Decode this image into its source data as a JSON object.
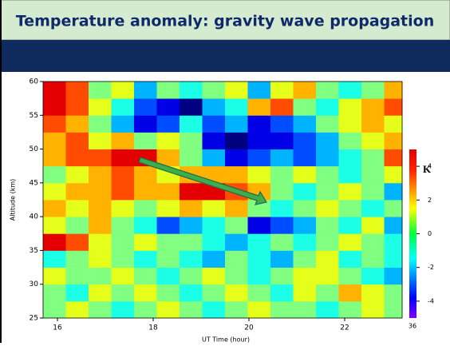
{
  "chart_data": {
    "type": "heatmap",
    "title": "Temperature anomaly: gravity wave propagation",
    "xlabel": "UT Time (hour)",
    "ylabel": "Altitude (km)",
    "xlim": [
      15.7,
      23.2
    ],
    "xticks": [
      16,
      18,
      20,
      22
    ],
    "ylim": [
      25,
      60
    ],
    "yticks": [
      25,
      30,
      35,
      40,
      45,
      50,
      55,
      60
    ],
    "xbins": [
      15.7,
      16.175,
      16.65,
      17.125,
      17.6,
      18.075,
      18.55,
      19.025,
      19.5,
      19.975,
      20.45,
      20.925,
      21.4,
      21.875,
      22.35,
      22.825,
      23.2
    ],
    "ybins": [
      25,
      27.5,
      30,
      32.5,
      35,
      37.5,
      40,
      42.5,
      45,
      47.5,
      50,
      52.5,
      55,
      57.5,
      60
    ],
    "colormap": "jet",
    "clim": [
      -5,
      5
    ],
    "cticks": [
      -4,
      -2,
      0,
      2,
      4
    ],
    "colorbar_label": "K",
    "colorbar_footnote": "36",
    "values": [
      [
        0,
        1,
        0,
        -1,
        0,
        1,
        0,
        -1,
        0,
        1,
        0,
        0,
        -1,
        0,
        1,
        0
      ],
      [
        0,
        -1,
        1,
        0,
        1,
        0,
        -1,
        0,
        1,
        0,
        -1,
        1,
        0,
        2,
        1,
        0
      ],
      [
        1,
        0,
        0,
        1,
        0,
        -1,
        0,
        1,
        0,
        -1,
        0,
        1,
        1,
        0,
        -1,
        -2
      ],
      [
        -1,
        0,
        1,
        0,
        -1,
        0,
        -1,
        -2,
        0,
        -1,
        -2,
        0,
        1,
        -1,
        0,
        -1
      ],
      [
        4,
        3,
        1,
        0,
        1,
        0,
        0,
        -1,
        -2,
        -1,
        0,
        -1,
        0,
        1,
        0,
        -1
      ],
      [
        1,
        0,
        2,
        0,
        -1,
        -3,
        -2,
        -1,
        0,
        -4,
        -3,
        -2,
        0,
        -1,
        1,
        -2
      ],
      [
        2,
        1,
        2,
        1,
        0,
        1,
        2,
        1,
        2,
        0,
        -1,
        0,
        1,
        0,
        -1,
        0
      ],
      [
        1,
        2,
        2,
        3,
        2,
        2,
        4,
        4,
        3,
        2,
        0,
        -1,
        0,
        1,
        0,
        -2
      ],
      [
        0,
        1,
        2,
        3,
        2,
        1,
        2,
        2,
        2,
        1,
        0,
        1,
        0,
        -1,
        0,
        1
      ],
      [
        2,
        3,
        3,
        4,
        4,
        2,
        0,
        -2,
        -4,
        -3,
        -2,
        -3,
        -2,
        -1,
        0,
        3
      ],
      [
        2,
        3,
        1,
        2,
        0,
        1,
        0,
        -4,
        -5,
        -4,
        -4,
        -3,
        -2,
        0,
        1,
        2
      ],
      [
        3,
        2,
        0,
        -2,
        -4,
        -3,
        -1,
        -3,
        -2,
        -4,
        -3,
        -2,
        0,
        1,
        2,
        1
      ],
      [
        4,
        3,
        1,
        -1,
        -3,
        -4,
        -5,
        -2,
        -1,
        2,
        3,
        0,
        -1,
        1,
        2,
        3
      ],
      [
        4,
        3,
        0,
        1,
        -2,
        0,
        -1,
        0,
        1,
        -2,
        1,
        2,
        0,
        -1,
        0,
        2
      ]
    ]
  }
}
